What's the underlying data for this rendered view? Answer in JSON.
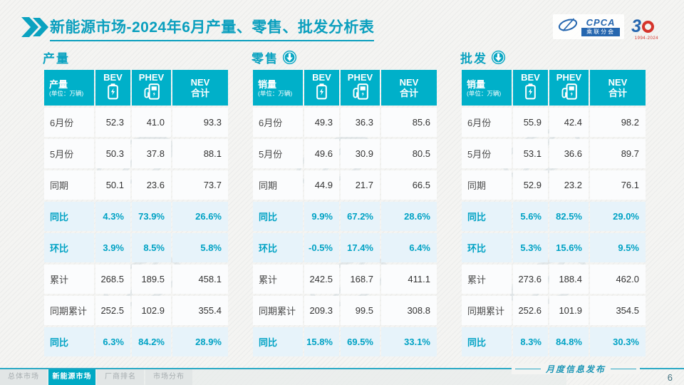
{
  "header": {
    "title": "新能源市场-2024年6月产量、零售、批发分析表",
    "logos": {
      "cpca_text": "CPCA",
      "cpca_sub": "乘联分会",
      "anniv_3": "3",
      "anniv_years": "1994-2024"
    }
  },
  "tables": [
    {
      "section_title": "产量",
      "down_icon": false,
      "header": {
        "label": "产量",
        "unit": "(单位：万辆)",
        "bev": "BEV",
        "phev": "PHEV",
        "nev_line1": "NEV",
        "nev_line2": "合计"
      },
      "rows": [
        {
          "label": "6月份",
          "bev": "52.3",
          "phev": "41.0",
          "nev": "93.3",
          "highlight": false
        },
        {
          "label": "5月份",
          "bev": "50.3",
          "phev": "37.8",
          "nev": "88.1",
          "highlight": false
        },
        {
          "label": "同期",
          "bev": "50.1",
          "phev": "23.6",
          "nev": "73.7",
          "highlight": false
        },
        {
          "label": "同比",
          "bev": "4.3%",
          "phev": "73.9%",
          "nev": "26.6%",
          "highlight": true
        },
        {
          "label": "环比",
          "bev": "3.9%",
          "phev": "8.5%",
          "nev": "5.8%",
          "highlight": true
        },
        {
          "label": "累计",
          "bev": "268.5",
          "phev": "189.5",
          "nev": "458.1",
          "highlight": false
        },
        {
          "label": "同期累计",
          "bev": "252.5",
          "phev": "102.9",
          "nev": "355.4",
          "highlight": false
        },
        {
          "label": "同比",
          "bev": "6.3%",
          "phev": "84.2%",
          "nev": "28.9%",
          "highlight": true
        }
      ]
    },
    {
      "section_title": "零售",
      "down_icon": true,
      "header": {
        "label": "销量",
        "unit": "(单位：万辆)",
        "bev": "BEV",
        "phev": "PHEV",
        "nev_line1": "NEV",
        "nev_line2": "合计"
      },
      "rows": [
        {
          "label": "6月份",
          "bev": "49.3",
          "phev": "36.3",
          "nev": "85.6",
          "highlight": false
        },
        {
          "label": "5月份",
          "bev": "49.6",
          "phev": "30.9",
          "nev": "80.5",
          "highlight": false
        },
        {
          "label": "同期",
          "bev": "44.9",
          "phev": "21.7",
          "nev": "66.5",
          "highlight": false
        },
        {
          "label": "同比",
          "bev": "9.9%",
          "phev": "67.2%",
          "nev": "28.6%",
          "highlight": true
        },
        {
          "label": "环比",
          "bev": "-0.5%",
          "phev": "17.4%",
          "nev": "6.4%",
          "highlight": true
        },
        {
          "label": "累计",
          "bev": "242.5",
          "phev": "168.7",
          "nev": "411.1",
          "highlight": false
        },
        {
          "label": "同期累计",
          "bev": "209.3",
          "phev": "99.5",
          "nev": "308.8",
          "highlight": false
        },
        {
          "label": "同比",
          "bev": "15.8%",
          "phev": "69.5%",
          "nev": "33.1%",
          "highlight": true
        }
      ]
    },
    {
      "section_title": "批发",
      "down_icon": true,
      "header": {
        "label": "销量",
        "unit": "(单位：万辆)",
        "bev": "BEV",
        "phev": "PHEV",
        "nev_line1": "NEV",
        "nev_line2": "合计"
      },
      "rows": [
        {
          "label": "6月份",
          "bev": "55.9",
          "phev": "42.4",
          "nev": "98.2",
          "highlight": false
        },
        {
          "label": "5月份",
          "bev": "53.1",
          "phev": "36.6",
          "nev": "89.7",
          "highlight": false
        },
        {
          "label": "同期",
          "bev": "52.9",
          "phev": "23.2",
          "nev": "76.1",
          "highlight": false
        },
        {
          "label": "同比",
          "bev": "5.6%",
          "phev": "82.5%",
          "nev": "29.0%",
          "highlight": true
        },
        {
          "label": "环比",
          "bev": "5.3%",
          "phev": "15.6%",
          "nev": "9.5%",
          "highlight": true
        },
        {
          "label": "累计",
          "bev": "273.6",
          "phev": "188.4",
          "nev": "462.0",
          "highlight": false
        },
        {
          "label": "同期累计",
          "bev": "252.6",
          "phev": "101.9",
          "nev": "354.5",
          "highlight": false
        },
        {
          "label": "同比",
          "bev": "8.3%",
          "phev": "84.8%",
          "nev": "30.3%",
          "highlight": true
        }
      ]
    }
  ],
  "footer": {
    "tabs": [
      {
        "label": "总体市场",
        "active": false
      },
      {
        "label": "新能源市场",
        "active": true
      },
      {
        "label": "厂商排名",
        "active": false
      },
      {
        "label": "市场分布",
        "active": false
      }
    ],
    "publication": "月度信息发布",
    "page": "6"
  },
  "colors": {
    "teal_primary": "#0aa2c0",
    "table_header_bg": "#00b0c9",
    "highlight_row_bg": "#e7f3fa",
    "highlight_text": "#00a2c4",
    "cpca_blue": "#2566af",
    "anniv_red": "#d5342c"
  }
}
